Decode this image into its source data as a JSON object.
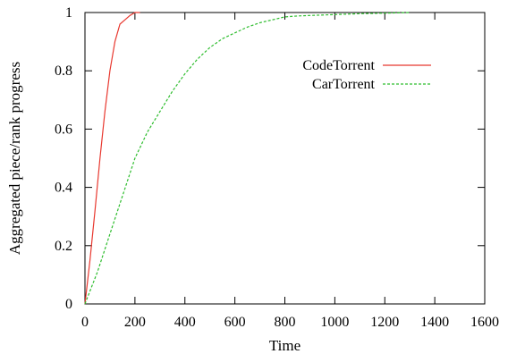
{
  "chart_data": {
    "type": "line",
    "title": "",
    "xlabel": "Time",
    "ylabel": "Aggregated  piece/rank progress",
    "xlim": [
      0,
      1600
    ],
    "ylim": [
      0,
      1
    ],
    "x_ticks": [
      0,
      200,
      400,
      600,
      800,
      1000,
      1200,
      1400,
      1600
    ],
    "y_ticks": [
      0,
      0.2,
      0.4,
      0.6,
      0.8,
      1
    ],
    "x_tick_labels": [
      "0",
      "200",
      "400",
      "600",
      "800",
      "1000",
      "1200",
      "1400",
      "1600"
    ],
    "y_tick_labels": [
      "0",
      "0.2",
      "0.4",
      "0.6",
      "0.8",
      "1"
    ],
    "grid": false,
    "legend_position": "top-right",
    "series": [
      {
        "name": "CodeTorrent",
        "color": "#e8382f",
        "dash": "solid",
        "x": [
          0,
          20,
          40,
          60,
          80,
          100,
          120,
          140,
          160,
          180,
          200,
          220
        ],
        "y": [
          0,
          0.15,
          0.32,
          0.5,
          0.66,
          0.8,
          0.9,
          0.96,
          0.975,
          0.99,
          1.0,
          1.0
        ]
      },
      {
        "name": "CarTorrent",
        "color": "#2ebd2e",
        "dash": "dashed",
        "x": [
          0,
          50,
          100,
          150,
          200,
          250,
          300,
          350,
          400,
          450,
          500,
          550,
          600,
          650,
          700,
          750,
          800,
          850,
          900,
          1000,
          1100,
          1200,
          1300
        ],
        "y": [
          0,
          0.11,
          0.24,
          0.37,
          0.5,
          0.59,
          0.66,
          0.73,
          0.79,
          0.84,
          0.88,
          0.91,
          0.93,
          0.95,
          0.965,
          0.975,
          0.985,
          0.988,
          0.99,
          0.993,
          0.996,
          0.998,
          1.0
        ]
      }
    ]
  }
}
